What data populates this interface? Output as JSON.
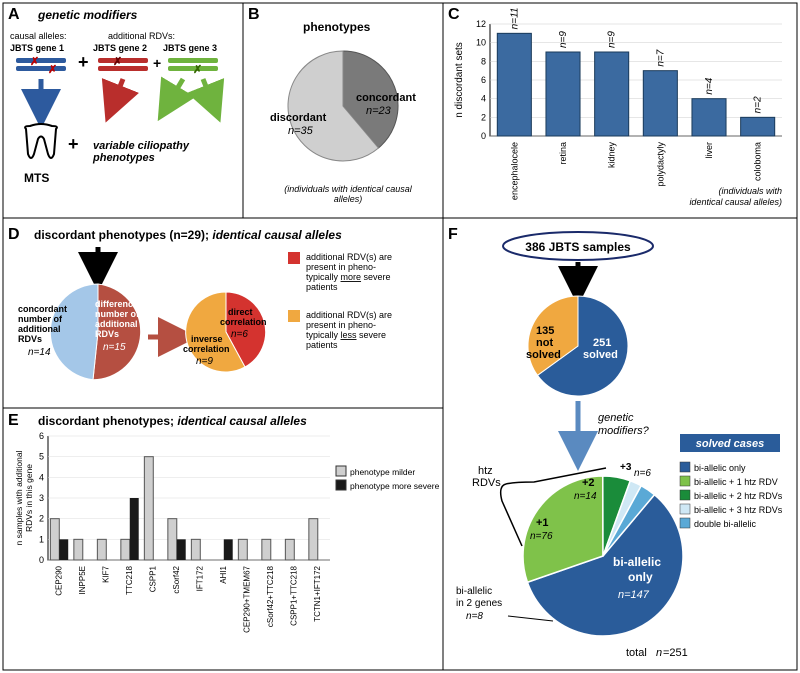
{
  "A": {
    "label": "A",
    "title": "genetic modifiers",
    "causal_alleles": "causal alleles:",
    "additional_rdvs": "additional RDVs:",
    "gene1": "JBTS gene 1",
    "gene2": "JBTS gene 2",
    "gene3": "JBTS gene 3",
    "mts": "MTS",
    "variable": "variable ciliopathy phenotypes",
    "colors": {
      "blue": "#2d5a9e",
      "red": "#b92e2c",
      "green": "#6fb33e"
    }
  },
  "B": {
    "label": "B",
    "title": "phenotypes",
    "slices": [
      {
        "label": "concordant",
        "n": "n=23",
        "value": 23,
        "color": "#7a7a7a"
      },
      {
        "label": "discordant",
        "n": "n=35",
        "value": 35,
        "color": "#cfcfcf"
      }
    ],
    "footnote": "(individuals with identical causal alleles)"
  },
  "C": {
    "label": "C",
    "ylabel": "n discordant sets",
    "ymax": 12,
    "categories": [
      "encephalocele",
      "retina",
      "kidney",
      "polydactyly",
      "liver",
      "coloboma"
    ],
    "values": [
      11,
      9,
      9,
      7,
      4,
      2
    ],
    "value_labels": [
      "n=11",
      "n=9",
      "n=9",
      "n=7",
      "n=4",
      "n=2"
    ],
    "bar_color": "#3b6aa0",
    "footnote": "(individuals with identical causal alleles)"
  },
  "D": {
    "label": "D",
    "title": "discordant phenotypes (n=29); ",
    "title_italic": "identical causal alleles",
    "pie1": [
      {
        "label": "concordant number of additional RDVs",
        "n": "n=14",
        "value": 14,
        "color": "#a4c7e8"
      },
      {
        "label": "difference in number of additional RDVs",
        "n": "n=15",
        "value": 15,
        "color": "#b54f41"
      }
    ],
    "pie2": [
      {
        "label": "direct correlation",
        "n": "n=6",
        "value": 6,
        "color": "#d4332f"
      },
      {
        "label": "inverse correlation",
        "n": "n=9",
        "value": 9,
        "color": "#f0a840"
      }
    ],
    "legend_red": "additional RDV(s) are present in pheno-typcially more severe patients",
    "legend_orange": "additional RDV(s) are present in pheno-typcially less severe patients"
  },
  "E": {
    "label": "E",
    "title": "discordant phenotypes; ",
    "title_italic": "identical causal alleles",
    "ylabel": "n samples with additional RDVs in this gene",
    "ymax": 6,
    "genes": [
      "CEP290",
      "INPP5E",
      "KIF7",
      "TTC218",
      "CSPP1",
      "cSorf42",
      "IFT172",
      "AHI1",
      "CEP290+TMEM67",
      "cSorf42+TTC218",
      "CSPP1+TTC218",
      "TCTN1+IFT172"
    ],
    "milder": [
      2,
      1,
      1,
      1,
      5,
      2,
      1,
      0,
      1,
      1,
      1,
      2
    ],
    "more_severe": [
      1,
      0,
      0,
      3,
      0,
      1,
      0,
      1,
      0,
      0,
      0,
      0
    ],
    "colors": {
      "milder": "#cfcfcf",
      "severe": "#1a1a1a"
    },
    "legend": [
      "phenotype milder",
      "phenotype more severe"
    ]
  },
  "F": {
    "label": "F",
    "header": "386 JBTS samples",
    "pie_top": [
      {
        "label": "251 solved",
        "value": 251,
        "color": "#2a5c9a"
      },
      {
        "label": "135 not solved",
        "value": 135,
        "color": "#f0a840"
      }
    ],
    "modifiers": "genetic modifiers?",
    "solved_box": "solved cases",
    "htz": "htz RDVs",
    "biallelic2": "bi-allelic in 2 genes",
    "pie_bottom": [
      {
        "key": "only",
        "label": "bi-allelic only",
        "n": "n=147",
        "value": 147,
        "color": "#2a5c9a"
      },
      {
        "key": "htz1",
        "label": "bi-allelic + 1 htz RDV",
        "n": "n=76",
        "value": 76,
        "color": "#7fc24a",
        "arc_label": "+1"
      },
      {
        "key": "htz2",
        "label": "bi-allelic + 2 htz RDVs",
        "n": "n=14",
        "value": 14,
        "color": "#1a8c3a",
        "arc_label": "+2"
      },
      {
        "key": "htz3",
        "label": "bi-allelic + 3 htz RDVs",
        "n": "n=6",
        "value": 6,
        "color": "#cfe8f5",
        "arc_label": "+3"
      },
      {
        "key": "double",
        "label": "double bi-allelic",
        "n": "n=8",
        "value": 8,
        "color": "#5aa9d6"
      }
    ],
    "total": "total n=251"
  }
}
